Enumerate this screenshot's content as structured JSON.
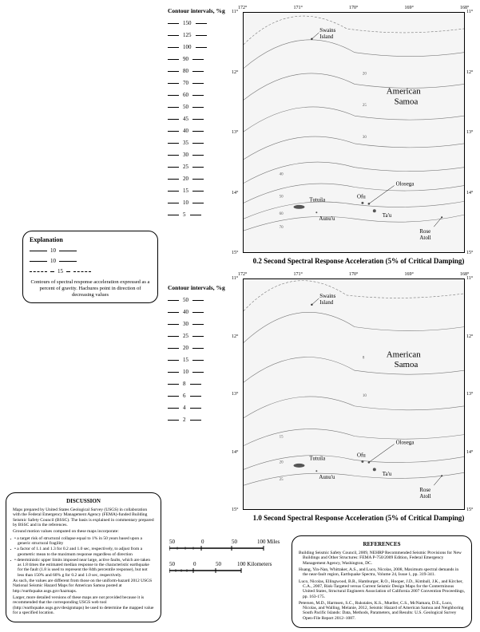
{
  "explanation": {
    "title": "Explanation",
    "val1": "10",
    "val2": "10",
    "val3": "15",
    "text": "Contours of spectral response acceleration expressed as a percent of gravity. Hachures point in direction of decreasing values"
  },
  "contour_top": {
    "title": "Contour intervals, %g",
    "values": [
      "150",
      "125",
      "100",
      "90",
      "80",
      "70",
      "60",
      "50",
      "45",
      "40",
      "35",
      "30",
      "25",
      "20",
      "15",
      "10",
      "5"
    ]
  },
  "contour_bottom": {
    "title": "Contour intervals, %g",
    "values": [
      "50",
      "40",
      "30",
      "25",
      "20",
      "15",
      "10",
      "8",
      "6",
      "4",
      "2"
    ]
  },
  "map1": {
    "lons": [
      "172°",
      "171°",
      "170°",
      "169°",
      "168°"
    ],
    "lats": [
      "11°",
      "12°",
      "13°",
      "14°",
      "15°"
    ],
    "labels": {
      "swains": "Swains Island",
      "american_samoa": "American Samoa",
      "tutuila": "Tutuila",
      "aunuu": "Aunu'u",
      "ofu": "Ofu",
      "olosega": "Olosega",
      "tau": "Ta'u",
      "rose": "Rose Atoll"
    },
    "contour_labels": [
      "70",
      "60",
      "50",
      "40",
      "30",
      "25",
      "20",
      "15"
    ],
    "caption": "0.2 Second Spectral Response Acceleration (5% of Critical Damping)"
  },
  "map2": {
    "lons": [
      "172°",
      "171°",
      "170°",
      "169°",
      "168°"
    ],
    "lats": [
      "11°",
      "12°",
      "13°",
      "14°",
      "15°"
    ],
    "labels": {
      "swains": "Swains Island",
      "american_samoa": "American Samoa",
      "tutuila": "Tutuila",
      "aunuu": "Aunu'u",
      "ofu": "Ofu",
      "olosega": "Olosega",
      "tau": "Ta'u",
      "rose": "Rose Atoll"
    },
    "contour_labels": [
      "25",
      "20",
      "15",
      "10",
      "8"
    ],
    "caption": "1.0 Second Spectral Response Acceleration (5% of Critical Damping)"
  },
  "scalebar": {
    "miles_ticks": [
      "50",
      "0",
      "50",
      "100 Miles"
    ],
    "km_ticks": [
      "50",
      "0",
      "50",
      "100 Kilometers"
    ]
  },
  "discussion": {
    "title": "DISCUSSION",
    "p1": "Maps prepared by United States Geological Survey (USGS) in collaboration with the Federal Emergency Management Agency (FEMA)-funded Building Seismic Safety Council (BSSC). The basis is explained in commentary prepared by BSSC and in the references.",
    "p2": "Ground motion values computed on these maps incorporate:",
    "li1": "• a target risk of structural collapse equal to 1% in 50 years based upon a generic structural fragility",
    "li2": "• a factor of 1.1 and 1.3 for 0.2 and 1.0 sec, respectively, to adjust from a geometric mean to the maximum response regardless of direction",
    "li3": "• deterministic upper limits imposed near large, active faults, which are taken as 1.8 times the estimated median response to the characteristic earthquake for the fault (1.8 is used to represent the 84th percentile response), but not less than 150% and 60% g for 0.2 and 1.0 sec, respectively.",
    "p3": "As such, the values are different from those on the uniform-hazard 2012 USGS National Seismic Hazard Maps for American Samoa posted at http://earthquake.usgs.gov/hazmaps.",
    "p4": "Larger, more detailed versions of these maps are not provided because it is recommended that the corresponding USGS web tool (http://earthquake.usgs.gov/designmaps) be used to determine the mapped value for a specified location."
  },
  "references": {
    "title": "REFERENCES",
    "r1": "Building Seismic Safety Council, 2009, NEHRP Recommended Seismic Provisions for New Buildings and Other Structures: FEMA P-750/2009 Edition, Federal Emergency Management Agency, Washington, DC.",
    "r2": "Huang, Yin-Nan, Whittaker, A.S., and Luco, Nicolas, 2008, Maximum spectral demands in the near-fault region, Earthquake Spectra, Volume 24, Issue 1, pp. 319-341.",
    "r3": "Luco, Nicolas, Ellingwood, B.R., Hamburger, R.O., Hooper, J.D., Kimball, J.K., and Kircher, C.A., 2007, Risk-Targeted versus Current Seismic Design Maps for the Conterminous United States, Structural Engineers Association of California 2007 Convention Proceedings, pp. 163-175.",
    "r4": "Petersen, M.D., Harmsen, S.C., Rukstales, K.S., Mueller, C.S., McNamara, D.E., Luco, Nicolas, and Walling, Melanie, 2012, Seismic Hazard of American Samoa and Neighboring South Pacific Islands: Data, Methods, Parameters, and Results: U.S. Geological Survey Open-File Report 2012–1087."
  },
  "styling": {
    "map_bg": "#f5f5f5",
    "map_border": "#000000",
    "contour_color": "#777777",
    "island_fill": "#666666",
    "text_color": "#000000",
    "box_border": "#000000",
    "font_family": "Times New Roman"
  }
}
